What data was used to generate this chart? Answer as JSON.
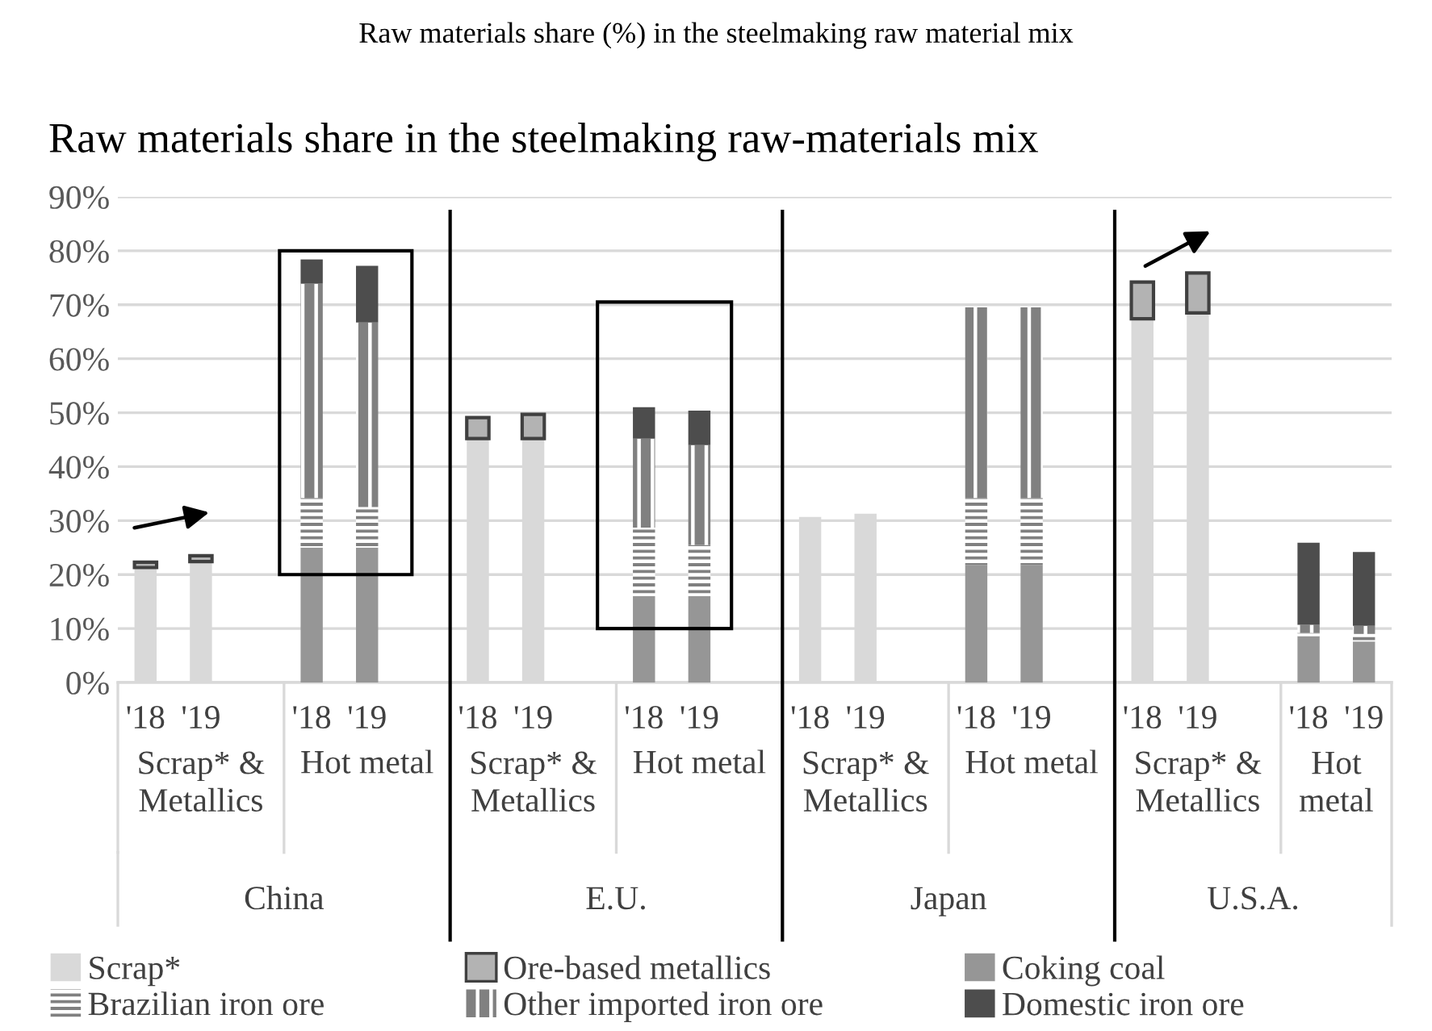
{
  "chart_data": {
    "type": "bar",
    "stacked": true,
    "title": "Raw materials share (%) in the steelmaking raw material mix",
    "subtitle": "Raw materials share in the steelmaking raw-materials mix",
    "categories": [
      "'18",
      "'19",
      null,
      "'18",
      "'19",
      null,
      "'18",
      "'19",
      null,
      "'18",
      "'19",
      null,
      "'18",
      "'19",
      null,
      "'18",
      "'19",
      null,
      "'18",
      "'19",
      null,
      "'18",
      "'19"
    ],
    "series": [
      {
        "name": "Scrap*",
        "color": "#d9d9d9",
        "values": [
          21.3,
          22.4,
          null,
          null,
          null,
          null,
          45.2,
          45.2,
          null,
          null,
          null,
          null,
          30.7,
          31.3,
          null,
          null,
          null,
          null,
          67.4,
          68.5,
          null,
          null,
          null
        ]
      },
      {
        "name": "Ore-based metallics",
        "color": "#b3b3b3",
        "values": [
          1.0,
          1.1,
          null,
          null,
          null,
          null,
          3.9,
          4.5,
          null,
          null,
          null,
          null,
          null,
          null,
          null,
          null,
          null,
          null,
          6.8,
          7.4,
          null,
          null,
          null
        ]
      },
      {
        "name": "Coking coal",
        "color": "#969696",
        "values": [
          null,
          null,
          null,
          25.0,
          25.0,
          null,
          null,
          null,
          null,
          16.0,
          16.0,
          null,
          null,
          null,
          null,
          21.8,
          21.8,
          null,
          null,
          null,
          null,
          8.6,
          7.6
        ]
      },
      {
        "name": "Brazilian iron ore",
        "color": "#808080",
        "values": [
          null,
          null,
          null,
          9.2,
          7.5,
          null,
          null,
          null,
          null,
          12.7,
          9.5,
          null,
          null,
          null,
          null,
          12.4,
          12.4,
          null,
          null,
          null,
          null,
          0.6,
          1.4
        ]
      },
      {
        "name": "Other imported iron ore",
        "color": "#808080",
        "values": [
          null,
          null,
          null,
          39.7,
          34.2,
          null,
          null,
          null,
          null,
          16.5,
          18.5,
          null,
          null,
          null,
          null,
          35.3,
          35.3,
          null,
          null,
          null,
          null,
          1.5,
          1.5
        ]
      },
      {
        "name": "Domestic iron ore",
        "color": "#4d4d4d",
        "values": [
          null,
          null,
          null,
          4.5,
          10.5,
          null,
          null,
          null,
          null,
          5.8,
          6.4,
          null,
          null,
          null,
          null,
          null,
          null,
          null,
          null,
          null,
          null,
          15.2,
          13.7
        ]
      }
    ],
    "annotations": [
      "Scrap* &\nMetallics",
      "Hot metal",
      "Scrap* &\nMetallics",
      "Hot metal",
      "Scrap* &\nMetallics",
      "Hot metal",
      "Scrap* &\nMetallics",
      "Hot\nmetal",
      "China",
      "E.U.",
      "Japan",
      "U.S.A."
    ],
    "ylim": [
      0,
      90
    ],
    "yticks": [
      {
        "value": 0,
        "label": "0%"
      },
      {
        "value": 10,
        "label": "10%"
      },
      {
        "value": 20,
        "label": "20%"
      },
      {
        "value": 30,
        "label": "30%"
      },
      {
        "value": 40,
        "label": "40%"
      },
      {
        "value": 50,
        "label": "50%"
      },
      {
        "value": 60,
        "label": "60%"
      },
      {
        "value": 70,
        "label": "70%"
      },
      {
        "value": 80,
        "label": "80%"
      },
      {
        "value": 90,
        "label": "90%"
      }
    ],
    "grid": "y",
    "legend": "bottom"
  }
}
